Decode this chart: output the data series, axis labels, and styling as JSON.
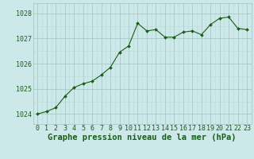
{
  "x": [
    0,
    1,
    2,
    3,
    4,
    5,
    6,
    7,
    8,
    9,
    10,
    11,
    12,
    13,
    14,
    15,
    16,
    17,
    18,
    19,
    20,
    21,
    22,
    23
  ],
  "y": [
    1024.0,
    1024.1,
    1024.25,
    1024.7,
    1025.05,
    1025.2,
    1025.3,
    1025.55,
    1025.85,
    1026.45,
    1026.7,
    1027.6,
    1027.3,
    1027.35,
    1027.05,
    1027.05,
    1027.25,
    1027.3,
    1027.15,
    1027.55,
    1027.8,
    1027.85,
    1027.4,
    1027.35
  ],
  "line_color": "#1a5c1a",
  "marker_color": "#1a5c1a",
  "bg_color": "#cce8e8",
  "grid_color_major": "#aac8c8",
  "grid_color_minor": "#bcd8d8",
  "xlabel": "Graphe pression niveau de la mer (hPa)",
  "xlabel_color": "#1a5c1a",
  "xlabel_fontsize": 7.5,
  "tick_color": "#1a5c1a",
  "tick_fontsize": 6,
  "ylim": [
    1023.6,
    1028.4
  ],
  "yticks": [
    1024,
    1025,
    1026,
    1027,
    1028
  ],
  "xlim": [
    -0.5,
    23.5
  ],
  "xticks": [
    0,
    1,
    2,
    3,
    4,
    5,
    6,
    7,
    8,
    9,
    10,
    11,
    12,
    13,
    14,
    15,
    16,
    17,
    18,
    19,
    20,
    21,
    22,
    23
  ]
}
